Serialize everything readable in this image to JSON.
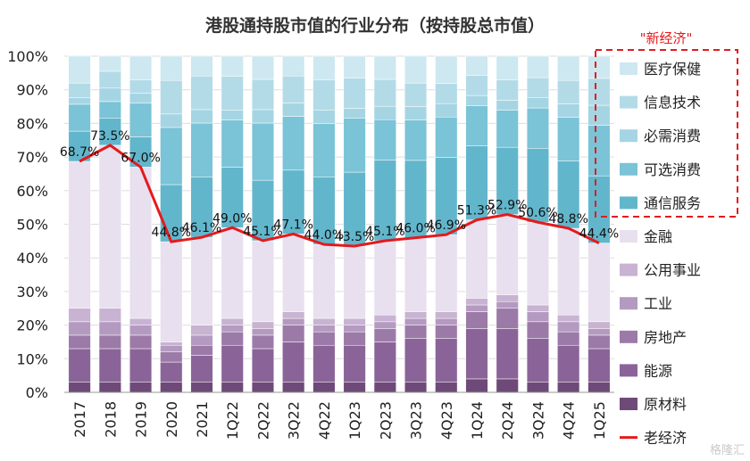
{
  "chart_data": {
    "type": "stacked-bar-with-line",
    "title": "港股通持股市值的行业分布（按持股总市值）",
    "categories": [
      "2017",
      "2018",
      "2019",
      "2020",
      "2021",
      "1Q22",
      "2Q22",
      "3Q22",
      "4Q22",
      "1Q23",
      "2Q23",
      "3Q23",
      "4Q23",
      "1Q24",
      "2Q24",
      "3Q24",
      "4Q24",
      "1Q25"
    ],
    "ylim": [
      0,
      100
    ],
    "yticks": [
      "0%",
      "10%",
      "20%",
      "30%",
      "40%",
      "50%",
      "60%",
      "70%",
      "80%",
      "90%",
      "100%"
    ],
    "series": [
      {
        "name": "原材料",
        "color": "#6e4a78",
        "values": [
          3,
          3,
          3,
          3,
          3,
          3,
          3,
          3,
          3,
          3,
          3,
          3,
          3,
          4,
          4,
          3,
          3,
          3
        ]
      },
      {
        "name": "能源",
        "color": "#8a6498",
        "values": [
          10,
          10,
          10,
          6,
          8,
          11,
          10,
          12,
          11,
          11,
          12,
          13,
          13,
          15,
          15,
          13,
          11,
          10
        ]
      },
      {
        "name": "房地产",
        "color": "#9c7aa8",
        "values": [
          4,
          4,
          4,
          3,
          3,
          4,
          4,
          5,
          4,
          4,
          4,
          4,
          4,
          5,
          6,
          5,
          4,
          4
        ]
      },
      {
        "name": "工业",
        "color": "#b49ac0",
        "values": [
          4,
          4,
          3,
          2,
          3,
          2,
          2,
          2,
          2,
          2,
          2,
          2,
          2,
          2,
          2,
          3,
          3,
          2
        ]
      },
      {
        "name": "公用事业",
        "color": "#c8b3d2",
        "values": [
          4,
          4,
          2,
          1,
          3,
          2,
          2,
          2,
          2,
          2,
          2,
          2,
          2,
          2,
          2,
          2,
          2,
          2
        ]
      },
      {
        "name": "金融",
        "color": "#e8e0ee",
        "values": [
          43.7,
          48.5,
          45,
          29.8,
          26.1,
          27,
          24.1,
          23.1,
          22,
          21.5,
          22.1,
          22,
          22.9,
          23.3,
          23.9,
          24.6,
          25.8,
          23.4
        ]
      },
      {
        "name": "通信服务",
        "color": "#62b6cc",
        "values": [
          9,
          8,
          9,
          17,
          18,
          18,
          18,
          19,
          20,
          22,
          24,
          23,
          23,
          22,
          20,
          22,
          20,
          20
        ]
      },
      {
        "name": "可选消费",
        "color": "#7bc3d6",
        "values": [
          8,
          5,
          10,
          17,
          16,
          14,
          17,
          16,
          16,
          16,
          12,
          12,
          12,
          12,
          11,
          12,
          13,
          15
        ]
      },
      {
        "name": "必需消费",
        "color": "#a5d5e3",
        "values": [
          2,
          4,
          3,
          4,
          4,
          3,
          4,
          4,
          4,
          3,
          4,
          4,
          4,
          3,
          3,
          3,
          4,
          6
        ]
      },
      {
        "name": "信息技术",
        "color": "#b3dbe7",
        "values": [
          4.3,
          5,
          4,
          10,
          10,
          10,
          9,
          8,
          9,
          9,
          8,
          7,
          6,
          6,
          6,
          6,
          7,
          8
        ]
      },
      {
        "name": "医疗保健",
        "color": "#cde8f0",
        "values": [
          8,
          4.5,
          7,
          7.2,
          5.9,
          6,
          6.9,
          5.9,
          7,
          6.5,
          6.9,
          8,
          8.1,
          5.7,
          7.1,
          6.4,
          7.2,
          6.6
        ]
      }
    ],
    "line": {
      "name": "老经济",
      "color": "#e41a1c",
      "values": [
        68.7,
        73.5,
        67.0,
        44.8,
        46.1,
        49.0,
        45.1,
        47.1,
        44.0,
        43.5,
        45.1,
        46.0,
        46.9,
        51.3,
        52.9,
        50.6,
        48.8,
        44.4
      ],
      "labels": [
        "68.7%",
        "73.5%",
        "67.0%",
        "44.8%",
        "46.1%",
        "49.0%",
        "45.1%",
        "47.1%",
        "44.0%",
        "43.5%",
        "45.1%",
        "46.0%",
        "46.9%",
        "51.3%",
        "52.9%",
        "50.6%",
        "48.8%",
        "44.4%"
      ]
    },
    "legend_bracket_label": "\"新经济\"",
    "legend_order": [
      "医疗保健",
      "信息技术",
      "必需消费",
      "可选消费",
      "通信服务",
      "金融",
      "公用事业",
      "工业",
      "房地产",
      "能源",
      "原材料",
      "老经济"
    ],
    "legend_position": "right"
  },
  "watermark": "格隆汇"
}
